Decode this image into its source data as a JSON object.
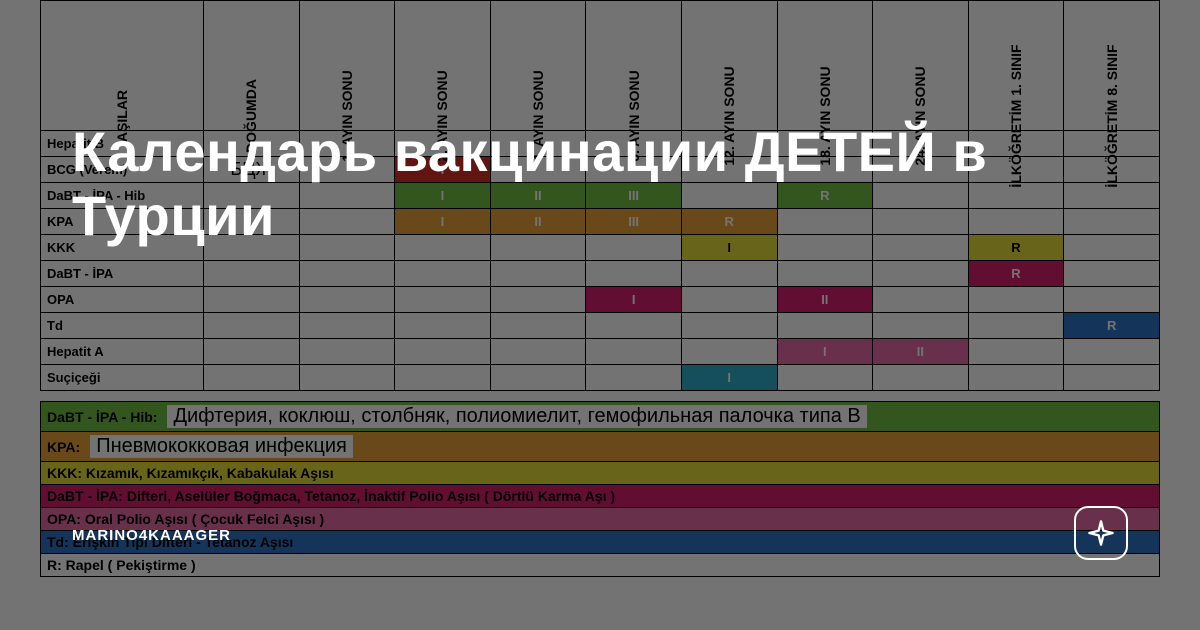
{
  "overlay": {
    "title": "Календарь вакцинации ДЕТЕЙ в Турции",
    "author": "MARINO4KAAAGER",
    "tint": "rgba(0,0,0,0.55)",
    "title_fontsize": 56,
    "title_color": "#ffffff"
  },
  "colors": {
    "red": "#d62f26",
    "green": "#6fbf44",
    "orange": "#e8a23a",
    "yellow": "#e7e13a",
    "magenta": "#d7206f",
    "pink": "#e86aa6",
    "blue": "#2f74c5",
    "cyan": "#2fb0c9",
    "white": "#ffffff",
    "black": "#000000",
    "border": "#000000"
  },
  "schedule": {
    "headers": [
      "AŞILAR",
      "DOĞUMDA",
      "1. AYIN SONU",
      "2. AYIN SONU",
      "4. AYIN SONU",
      "6. AYIN SONU",
      "12. AYIN SONU",
      "18. AYIN SONU",
      "24. AYIN SONU",
      "İLKÖĞRETİM 1. SINIF",
      "İLKÖĞRETİM 8. SINIF"
    ],
    "rows": [
      {
        "label": "Hepatit B",
        "cells": [
          {
            "t": "",
            "c": null
          },
          {
            "t": "",
            "c": null
          },
          {
            "t": "",
            "c": null
          },
          {
            "t": "",
            "c": null
          },
          {
            "t": "",
            "c": null
          },
          {
            "t": "",
            "c": null
          },
          {
            "t": "",
            "c": null
          },
          {
            "t": "",
            "c": null
          },
          {
            "t": "",
            "c": null
          },
          {
            "t": "",
            "c": null
          }
        ]
      },
      {
        "label": "BCG (Verem)",
        "cells": [
          {
            "t": "БЦЖ",
            "c": "plain"
          },
          {
            "t": "",
            "c": null
          },
          {
            "t": "I",
            "c": "red"
          },
          {
            "t": "",
            "c": null
          },
          {
            "t": "",
            "c": null
          },
          {
            "t": "",
            "c": null
          },
          {
            "t": "",
            "c": null
          },
          {
            "t": "",
            "c": null
          },
          {
            "t": "",
            "c": null
          },
          {
            "t": "",
            "c": null
          }
        ]
      },
      {
        "label": "DaBT - İPA - Hib",
        "cells": [
          {
            "t": "",
            "c": null
          },
          {
            "t": "",
            "c": null
          },
          {
            "t": "I",
            "c": "green"
          },
          {
            "t": "II",
            "c": "green"
          },
          {
            "t": "III",
            "c": "green"
          },
          {
            "t": "",
            "c": null
          },
          {
            "t": "R",
            "c": "green"
          },
          {
            "t": "",
            "c": null
          },
          {
            "t": "",
            "c": null
          },
          {
            "t": "",
            "c": null
          }
        ]
      },
      {
        "label": "KPA",
        "cells": [
          {
            "t": "",
            "c": null
          },
          {
            "t": "",
            "c": null
          },
          {
            "t": "I",
            "c": "orange"
          },
          {
            "t": "II",
            "c": "orange"
          },
          {
            "t": "III",
            "c": "orange"
          },
          {
            "t": "R",
            "c": "orange"
          },
          {
            "t": "",
            "c": null
          },
          {
            "t": "",
            "c": null
          },
          {
            "t": "",
            "c": null
          },
          {
            "t": "",
            "c": null
          }
        ]
      },
      {
        "label": "KKK",
        "cells": [
          {
            "t": "",
            "c": null
          },
          {
            "t": "",
            "c": null
          },
          {
            "t": "",
            "c": null
          },
          {
            "t": "",
            "c": null
          },
          {
            "t": "",
            "c": null
          },
          {
            "t": "I",
            "c": "yellow"
          },
          {
            "t": "",
            "c": null
          },
          {
            "t": "",
            "c": null
          },
          {
            "t": "R",
            "c": "yellow"
          },
          {
            "t": "",
            "c": null
          }
        ]
      },
      {
        "label": "DaBT - İPA",
        "cells": [
          {
            "t": "",
            "c": null
          },
          {
            "t": "",
            "c": null
          },
          {
            "t": "",
            "c": null
          },
          {
            "t": "",
            "c": null
          },
          {
            "t": "",
            "c": null
          },
          {
            "t": "",
            "c": null
          },
          {
            "t": "",
            "c": null
          },
          {
            "t": "",
            "c": null
          },
          {
            "t": "R",
            "c": "magenta"
          },
          {
            "t": "",
            "c": null
          }
        ]
      },
      {
        "label": "OPA",
        "cells": [
          {
            "t": "",
            "c": null
          },
          {
            "t": "",
            "c": null
          },
          {
            "t": "",
            "c": null
          },
          {
            "t": "",
            "c": null
          },
          {
            "t": "I",
            "c": "magenta"
          },
          {
            "t": "",
            "c": null
          },
          {
            "t": "II",
            "c": "magenta"
          },
          {
            "t": "",
            "c": null
          },
          {
            "t": "",
            "c": null
          },
          {
            "t": "",
            "c": null
          }
        ]
      },
      {
        "label": "Td",
        "cells": [
          {
            "t": "",
            "c": null
          },
          {
            "t": "",
            "c": null
          },
          {
            "t": "",
            "c": null
          },
          {
            "t": "",
            "c": null
          },
          {
            "t": "",
            "c": null
          },
          {
            "t": "",
            "c": null
          },
          {
            "t": "",
            "c": null
          },
          {
            "t": "",
            "c": null
          },
          {
            "t": "",
            "c": null
          },
          {
            "t": "R",
            "c": "blue"
          }
        ]
      },
      {
        "label": "Hepatit A",
        "cells": [
          {
            "t": "",
            "c": null
          },
          {
            "t": "",
            "c": null
          },
          {
            "t": "",
            "c": null
          },
          {
            "t": "",
            "c": null
          },
          {
            "t": "",
            "c": null
          },
          {
            "t": "",
            "c": null
          },
          {
            "t": "I",
            "c": "pink"
          },
          {
            "t": "II",
            "c": "pink"
          },
          {
            "t": "",
            "c": null
          },
          {
            "t": "",
            "c": null
          }
        ]
      },
      {
        "label": "Suçiçeği",
        "cells": [
          {
            "t": "",
            "c": null
          },
          {
            "t": "",
            "c": null
          },
          {
            "t": "",
            "c": null
          },
          {
            "t": "",
            "c": null
          },
          {
            "t": "",
            "c": null
          },
          {
            "t": "I",
            "c": "cyan"
          },
          {
            "t": "",
            "c": null
          },
          {
            "t": "",
            "c": null
          },
          {
            "t": "",
            "c": null
          },
          {
            "t": "",
            "c": null
          }
        ]
      }
    ]
  },
  "legend": [
    {
      "bg": "green",
      "key": "DaBT - İPA - Hib:",
      "desc": "Дифтерия, коклюш, столбняк, полиомиелит, гемофильная палочка типа B",
      "desc_big": true
    },
    {
      "bg": "orange",
      "key": "KPA:",
      "desc": "Пневмококковая инфекция",
      "desc_big": true
    },
    {
      "bg": "yellow",
      "key": "KKK: Kızamık, Kızamıkçık, Kabakulak Aşısı",
      "desc": ""
    },
    {
      "bg": "magenta",
      "key": "DaBT - İPA: Difteri, Aselüler Boğmaca, Tetanoz, İnaktif Polio Aşısı ( Dörtlü Karma Aşı )",
      "desc": ""
    },
    {
      "bg": "pink",
      "key": "OPA: Oral Polio Aşısı ( Çocuk Felci Aşısı )",
      "desc": ""
    },
    {
      "bg": "blue",
      "key": "Td: Erişkin Tipi Difteri - Tetanoz Aşısı",
      "desc": ""
    },
    {
      "bg": "white",
      "key": "R: Rapel ( Pekiştirme )",
      "desc": ""
    }
  ]
}
